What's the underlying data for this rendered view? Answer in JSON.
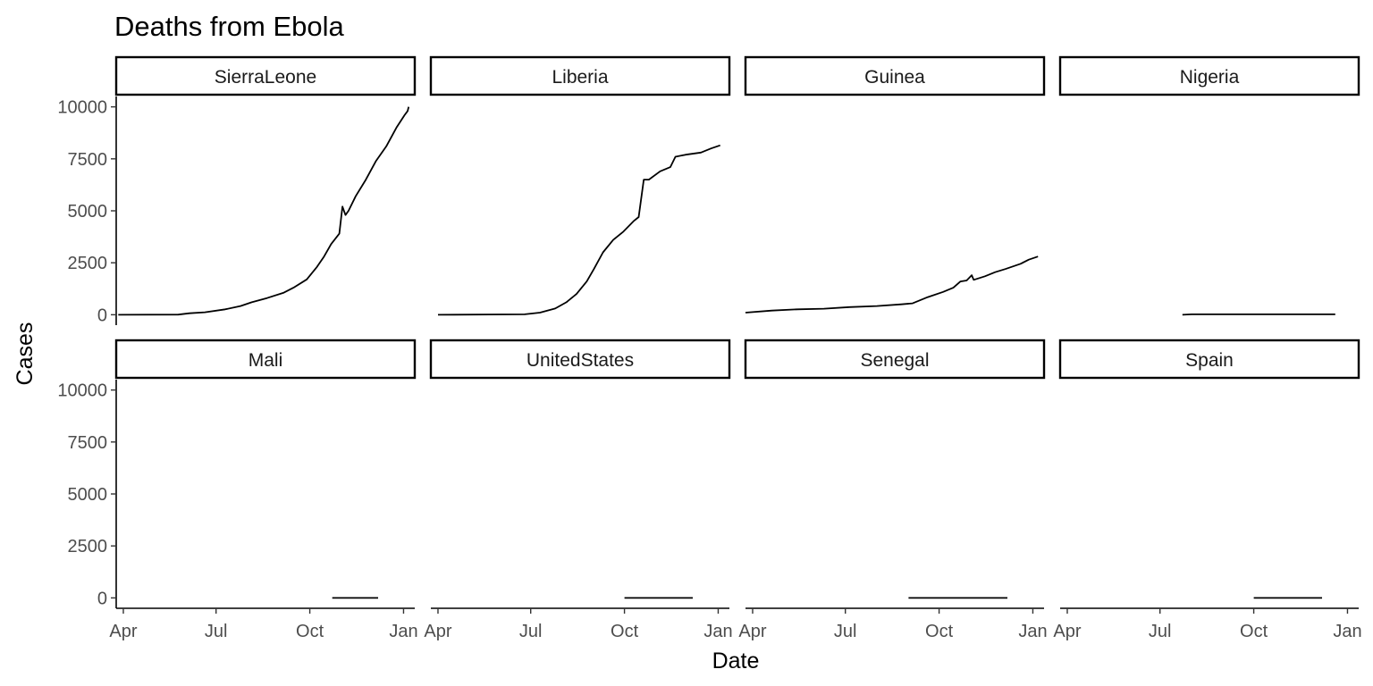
{
  "chart_data": {
    "type": "line",
    "title": "Deaths from Ebola",
    "xlabel": "Date",
    "ylabel": "Cases",
    "facet_layout": {
      "rows": 2,
      "cols": 4
    },
    "x_ticks": [
      "2014-04-01",
      "2014-07-01",
      "2014-10-01",
      "2015-01-01"
    ],
    "x_tick_labels": [
      "Apr",
      "Jul",
      "Oct",
      "Jan"
    ],
    "xlim": [
      "2014-03-25",
      "2015-01-12"
    ],
    "y_ticks": [
      0,
      2500,
      5000,
      7500,
      10000
    ],
    "y_tick_labels": [
      "0",
      "2500",
      "5000",
      "7500",
      "10000"
    ],
    "ylim": [
      -500,
      10500
    ],
    "grid": false,
    "legend": "none",
    "color": "#000000",
    "series": [
      {
        "name": "SierraLeone",
        "points": [
          [
            "2014-03-27",
            0
          ],
          [
            "2014-05-25",
            5
          ],
          [
            "2014-06-05",
            70
          ],
          [
            "2014-06-20",
            120
          ],
          [
            "2014-07-10",
            260
          ],
          [
            "2014-07-25",
            420
          ],
          [
            "2014-08-05",
            600
          ],
          [
            "2014-08-20",
            800
          ],
          [
            "2014-09-05",
            1050
          ],
          [
            "2014-09-15",
            1300
          ],
          [
            "2014-09-28",
            1700
          ],
          [
            "2014-10-08",
            2300
          ],
          [
            "2014-10-15",
            2800
          ],
          [
            "2014-10-22",
            3400
          ],
          [
            "2014-10-30",
            3900
          ],
          [
            "2014-11-02",
            5200
          ],
          [
            "2014-11-05",
            4800
          ],
          [
            "2014-11-08",
            5000
          ],
          [
            "2014-11-15",
            5700
          ],
          [
            "2014-11-25",
            6500
          ],
          [
            "2014-12-05",
            7400
          ],
          [
            "2014-12-15",
            8100
          ],
          [
            "2014-12-25",
            9000
          ],
          [
            "2015-01-02",
            9600
          ],
          [
            "2015-01-05",
            9800
          ],
          [
            "2015-01-06",
            10000
          ]
        ]
      },
      {
        "name": "Liberia",
        "points": [
          [
            "2014-04-01",
            0
          ],
          [
            "2014-06-25",
            20
          ],
          [
            "2014-07-10",
            100
          ],
          [
            "2014-07-25",
            300
          ],
          [
            "2014-08-05",
            600
          ],
          [
            "2014-08-15",
            1000
          ],
          [
            "2014-08-25",
            1600
          ],
          [
            "2014-09-01",
            2200
          ],
          [
            "2014-09-10",
            3000
          ],
          [
            "2014-09-20",
            3600
          ],
          [
            "2014-09-30",
            4000
          ],
          [
            "2014-10-10",
            4500
          ],
          [
            "2014-10-15",
            4700
          ],
          [
            "2014-10-20",
            6500
          ],
          [
            "2014-10-25",
            6500
          ],
          [
            "2014-11-05",
            6900
          ],
          [
            "2014-11-15",
            7100
          ],
          [
            "2014-11-20",
            7600
          ],
          [
            "2014-11-30",
            7700
          ],
          [
            "2014-12-15",
            7800
          ],
          [
            "2014-12-25",
            8000
          ],
          [
            "2015-01-03",
            8150
          ]
        ]
      },
      {
        "name": "Guinea",
        "points": [
          [
            "2014-03-25",
            100
          ],
          [
            "2014-04-20",
            200
          ],
          [
            "2014-05-15",
            260
          ],
          [
            "2014-06-10",
            290
          ],
          [
            "2014-07-05",
            370
          ],
          [
            "2014-08-01",
            420
          ],
          [
            "2014-08-25",
            500
          ],
          [
            "2014-09-05",
            550
          ],
          [
            "2014-09-20",
            850
          ],
          [
            "2014-10-05",
            1100
          ],
          [
            "2014-10-15",
            1300
          ],
          [
            "2014-10-22",
            1600
          ],
          [
            "2014-10-28",
            1650
          ],
          [
            "2014-11-02",
            1900
          ],
          [
            "2014-11-04",
            1680
          ],
          [
            "2014-11-15",
            1850
          ],
          [
            "2014-11-25",
            2050
          ],
          [
            "2014-12-05",
            2200
          ],
          [
            "2014-12-20",
            2450
          ],
          [
            "2014-12-28",
            2650
          ],
          [
            "2015-01-06",
            2800
          ]
        ]
      },
      {
        "name": "Nigeria",
        "points": [
          [
            "2014-07-23",
            0
          ],
          [
            "2014-08-01",
            20
          ],
          [
            "2014-12-20",
            20
          ]
        ]
      },
      {
        "name": "Mali",
        "points": [
          [
            "2014-10-23",
            0
          ],
          [
            "2014-12-07",
            0
          ]
        ]
      },
      {
        "name": "UnitedStates",
        "points": [
          [
            "2014-10-01",
            0
          ],
          [
            "2014-12-07",
            0
          ]
        ]
      },
      {
        "name": "Senegal",
        "points": [
          [
            "2014-09-01",
            0
          ],
          [
            "2014-12-07",
            0
          ]
        ]
      },
      {
        "name": "Spain",
        "points": [
          [
            "2014-10-01",
            0
          ],
          [
            "2014-12-07",
            0
          ]
        ]
      }
    ]
  }
}
